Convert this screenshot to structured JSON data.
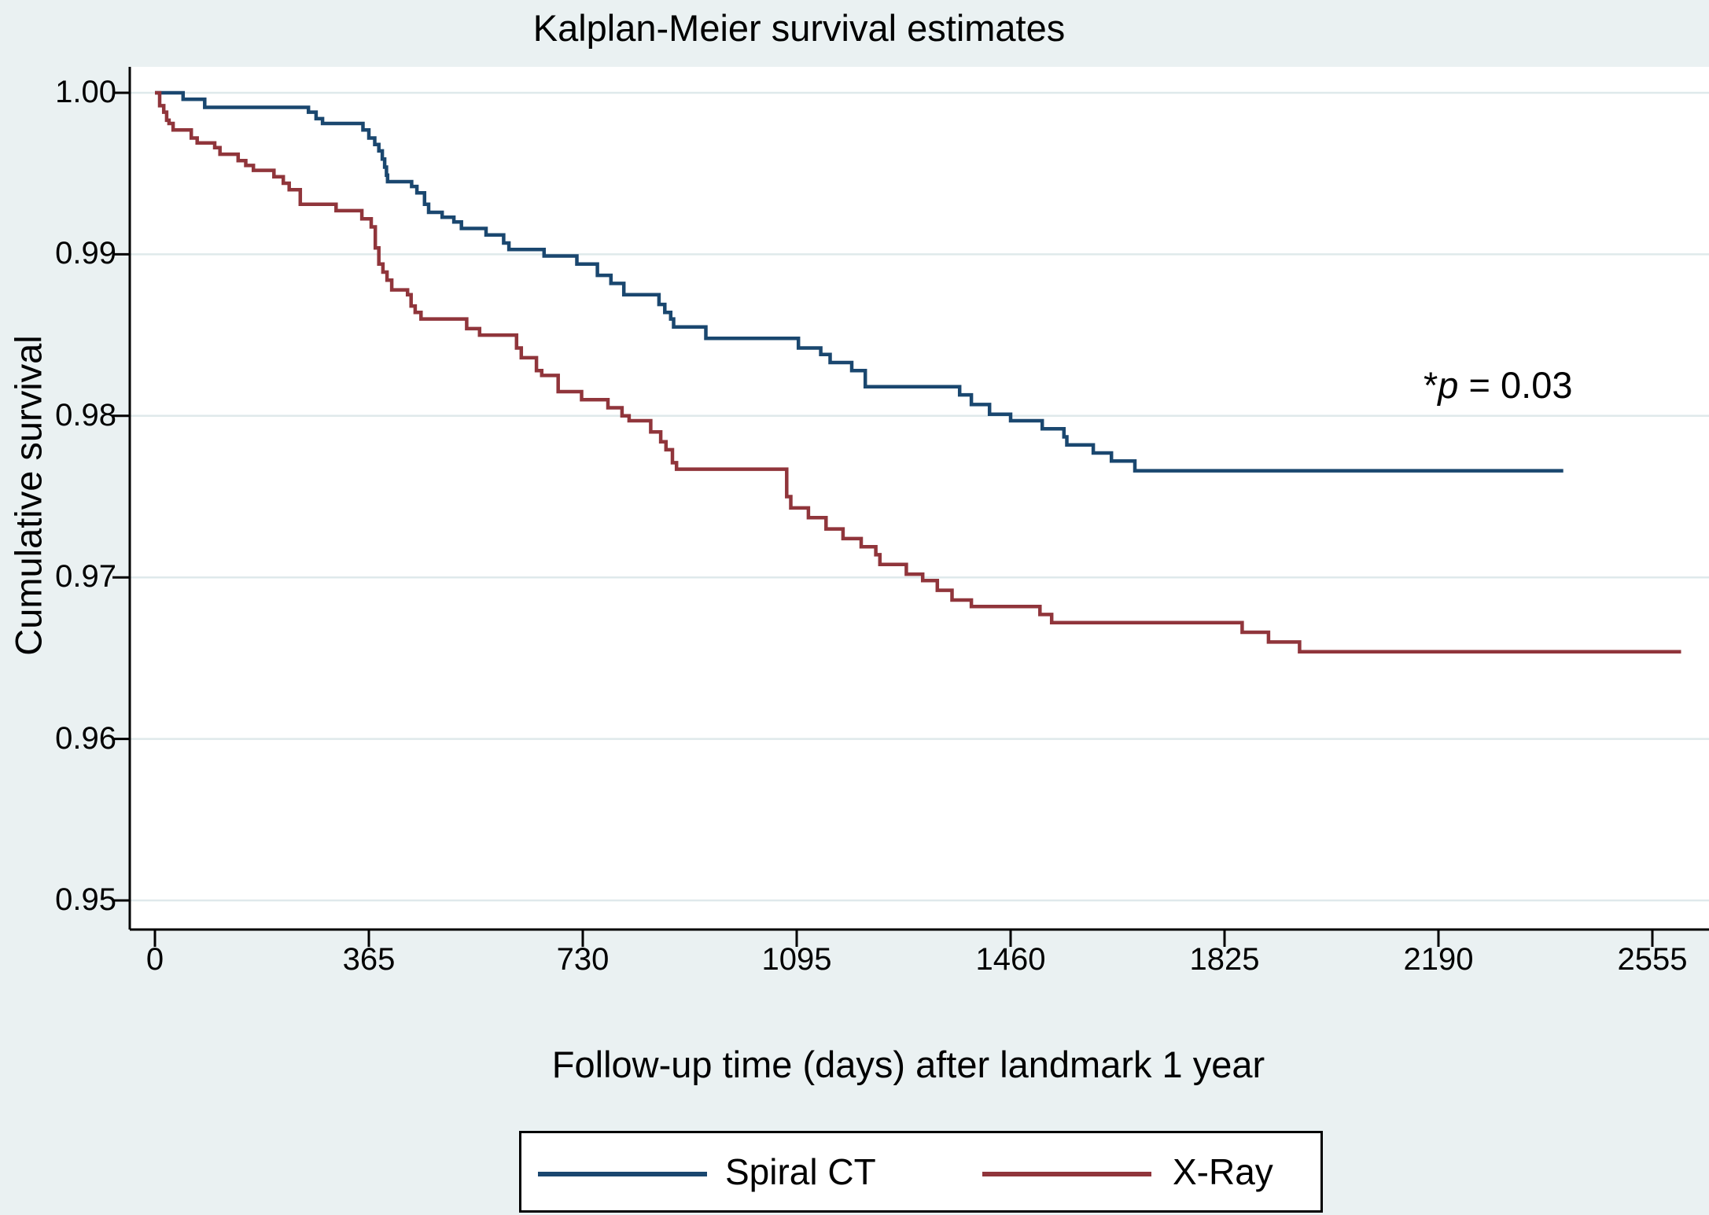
{
  "figure": {
    "title": "Kalplan-Meier survival estimates",
    "x_axis_title": "Follow-up time (days) after landmark 1 year",
    "y_axis_title": "Cumulative survival",
    "annotation": {
      "star": "*",
      "p_symbol": "p",
      "rest": " = 0.03"
    },
    "colors": {
      "figure_background": "#eaf1f2",
      "plot_background": "#ffffff",
      "gridline": "#dfe9eb",
      "axis": "#000000",
      "spiral_ct": "#1a476f",
      "x_ray": "#90353b",
      "legend_background": "#ffffff",
      "legend_border": "#000000"
    },
    "legend": {
      "items": [
        {
          "label": "Spiral CT",
          "color": "#1a476f"
        },
        {
          "label": "X-Ray",
          "color": "#90353b"
        }
      ]
    }
  },
  "chart_data": {
    "type": "line",
    "subtype": "kaplan-meier-step",
    "title": "Kalplan-Meier survival estimates",
    "xlabel": "Follow-up time (days) after landmark 1 year",
    "ylabel": "Cumulative survival",
    "annotation": "*p = 0.03",
    "xlim": [
      0,
      2700
    ],
    "ylim": [
      0.95,
      1.0
    ],
    "x_ticks": [
      0,
      365,
      730,
      1095,
      1460,
      1825,
      2190,
      2555
    ],
    "y_ticks": [
      "1.00",
      "0.99",
      "0.98",
      "0.97",
      "0.96",
      "0.95"
    ],
    "y_tick_values": [
      1.0,
      0.99,
      0.98,
      0.97,
      0.96,
      0.95
    ],
    "grid": "horizontal",
    "legend_position": "bottom-center",
    "step": "after",
    "series": [
      {
        "name": "Spiral CT",
        "color": "#1a476f",
        "points": [
          [
            0,
            1.0
          ],
          [
            48,
            0.9996
          ],
          [
            85,
            0.9991
          ],
          [
            262,
            0.9988
          ],
          [
            275,
            0.9984
          ],
          [
            286,
            0.9981
          ],
          [
            355,
            0.9977
          ],
          [
            365,
            0.9972
          ],
          [
            375,
            0.9968
          ],
          [
            382,
            0.9964
          ],
          [
            388,
            0.9959
          ],
          [
            392,
            0.9954
          ],
          [
            395,
            0.9949
          ],
          [
            397,
            0.9945
          ],
          [
            438,
            0.9942
          ],
          [
            447,
            0.9938
          ],
          [
            460,
            0.9931
          ],
          [
            467,
            0.9926
          ],
          [
            490,
            0.9923
          ],
          [
            510,
            0.992
          ],
          [
            523,
            0.9916
          ],
          [
            565,
            0.9912
          ],
          [
            595,
            0.9907
          ],
          [
            604,
            0.9903
          ],
          [
            664,
            0.9899
          ],
          [
            720,
            0.9894
          ],
          [
            755,
            0.9887
          ],
          [
            778,
            0.9882
          ],
          [
            800,
            0.9875
          ],
          [
            860,
            0.9869
          ],
          [
            870,
            0.9864
          ],
          [
            880,
            0.986
          ],
          [
            885,
            0.9855
          ],
          [
            940,
            0.9848
          ],
          [
            1098,
            0.9842
          ],
          [
            1136,
            0.9838
          ],
          [
            1152,
            0.9833
          ],
          [
            1189,
            0.9828
          ],
          [
            1212,
            0.9818
          ],
          [
            1373,
            0.9813
          ],
          [
            1393,
            0.9807
          ],
          [
            1424,
            0.9801
          ],
          [
            1460,
            0.9797
          ],
          [
            1514,
            0.9792
          ],
          [
            1551,
            0.9787
          ],
          [
            1556,
            0.9782
          ],
          [
            1601,
            0.9777
          ],
          [
            1632,
            0.9772
          ],
          [
            1672,
            0.9766
          ],
          [
            2403,
            0.9766
          ]
        ]
      },
      {
        "name": "X-Ray",
        "color": "#90353b",
        "points": [
          [
            0,
            1.0
          ],
          [
            8,
            0.9992
          ],
          [
            15,
            0.9988
          ],
          [
            20,
            0.9983
          ],
          [
            24,
            0.9981
          ],
          [
            31,
            0.9977
          ],
          [
            62,
            0.9972
          ],
          [
            72,
            0.9969
          ],
          [
            102,
            0.9966
          ],
          [
            111,
            0.9962
          ],
          [
            142,
            0.9958
          ],
          [
            155,
            0.9955
          ],
          [
            168,
            0.9952
          ],
          [
            203,
            0.9948
          ],
          [
            219,
            0.9944
          ],
          [
            229,
            0.994
          ],
          [
            248,
            0.9931
          ],
          [
            309,
            0.9927
          ],
          [
            353,
            0.9922
          ],
          [
            369,
            0.9917
          ],
          [
            376,
            0.9904
          ],
          [
            382,
            0.9894
          ],
          [
            389,
            0.9889
          ],
          [
            396,
            0.9884
          ],
          [
            404,
            0.9878
          ],
          [
            431,
            0.9875
          ],
          [
            437,
            0.9868
          ],
          [
            444,
            0.9864
          ],
          [
            454,
            0.986
          ],
          [
            532,
            0.9854
          ],
          [
            554,
            0.985
          ],
          [
            617,
            0.9842
          ],
          [
            625,
            0.9836
          ],
          [
            651,
            0.9828
          ],
          [
            660,
            0.9825
          ],
          [
            688,
            0.9815
          ],
          [
            728,
            0.981
          ],
          [
            773,
            0.9805
          ],
          [
            797,
            0.98
          ],
          [
            809,
            0.9797
          ],
          [
            846,
            0.979
          ],
          [
            863,
            0.9784
          ],
          [
            872,
            0.9779
          ],
          [
            883,
            0.9771
          ],
          [
            890,
            0.9767
          ],
          [
            1078,
            0.975
          ],
          [
            1085,
            0.9743
          ],
          [
            1115,
            0.9737
          ],
          [
            1145,
            0.973
          ],
          [
            1174,
            0.9724
          ],
          [
            1205,
            0.9719
          ],
          [
            1230,
            0.9714
          ],
          [
            1237,
            0.9708
          ],
          [
            1282,
            0.9702
          ],
          [
            1310,
            0.9698
          ],
          [
            1335,
            0.9692
          ],
          [
            1360,
            0.9686
          ],
          [
            1393,
            0.9682
          ],
          [
            1510,
            0.9677
          ],
          [
            1530,
            0.9672
          ],
          [
            1855,
            0.9666
          ],
          [
            1900,
            0.966
          ],
          [
            1953,
            0.9654
          ],
          [
            2604,
            0.9654
          ]
        ]
      }
    ]
  }
}
